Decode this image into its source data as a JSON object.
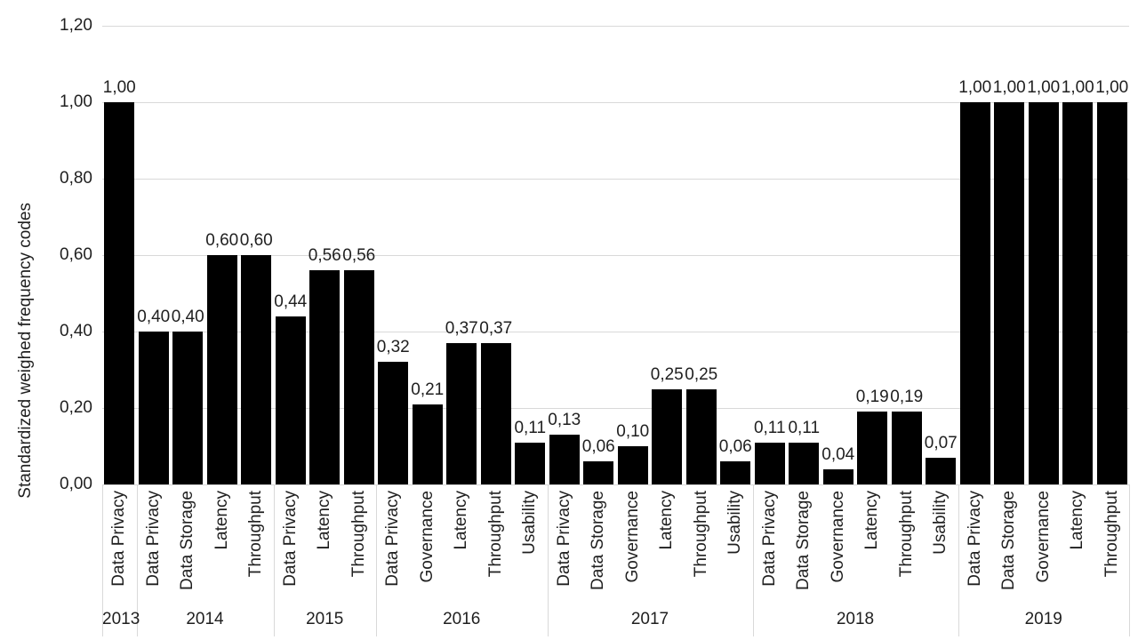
{
  "chart_data": {
    "type": "bar",
    "title": "",
    "ylabel": "Standardized weighed frequency codes",
    "xlabel": "",
    "ylim": [
      0,
      1.2
    ],
    "yticks": [
      0.0,
      0.2,
      0.4,
      0.6,
      0.8,
      1.0,
      1.2
    ],
    "decimal_separator": ",",
    "bar_color": "#000000",
    "gridline_color": "#d9d9d9",
    "grid": "horizontal",
    "legend": "none",
    "groups": [
      {
        "year": "2013",
        "bars": [
          {
            "category": "Data Privacy",
            "value": 1.0
          }
        ]
      },
      {
        "year": "2014",
        "bars": [
          {
            "category": "Data Privacy",
            "value": 0.4
          },
          {
            "category": "Data Storage",
            "value": 0.4
          },
          {
            "category": "Latency",
            "value": 0.6
          },
          {
            "category": "Throughput",
            "value": 0.6
          }
        ]
      },
      {
        "year": "2015",
        "bars": [
          {
            "category": "Data Privacy",
            "value": 0.44
          },
          {
            "category": "Latency",
            "value": 0.56
          },
          {
            "category": "Throughput",
            "value": 0.56
          }
        ]
      },
      {
        "year": "2016",
        "bars": [
          {
            "category": "Data Privacy",
            "value": 0.32
          },
          {
            "category": "Governance",
            "value": 0.21
          },
          {
            "category": "Latency",
            "value": 0.37
          },
          {
            "category": "Throughput",
            "value": 0.37
          },
          {
            "category": "Usability",
            "value": 0.11
          }
        ]
      },
      {
        "year": "2017",
        "bars": [
          {
            "category": "Data Privacy",
            "value": 0.13
          },
          {
            "category": "Data Storage",
            "value": 0.06
          },
          {
            "category": "Governance",
            "value": 0.1
          },
          {
            "category": "Latency",
            "value": 0.25
          },
          {
            "category": "Throughput",
            "value": 0.25
          },
          {
            "category": "Usability",
            "value": 0.06
          }
        ]
      },
      {
        "year": "2018",
        "bars": [
          {
            "category": "Data Privacy",
            "value": 0.11
          },
          {
            "category": "Data Storage",
            "value": 0.11
          },
          {
            "category": "Governance",
            "value": 0.04
          },
          {
            "category": "Latency",
            "value": 0.19
          },
          {
            "category": "Throughput",
            "value": 0.19
          },
          {
            "category": "Usability",
            "value": 0.07
          }
        ]
      },
      {
        "year": "2019",
        "bars": [
          {
            "category": "Data Privacy",
            "value": 1.0
          },
          {
            "category": "Data Storage",
            "value": 1.0
          },
          {
            "category": "Governance",
            "value": 1.0
          },
          {
            "category": "Latency",
            "value": 1.0
          },
          {
            "category": "Throughput",
            "value": 1.0
          }
        ]
      }
    ]
  }
}
